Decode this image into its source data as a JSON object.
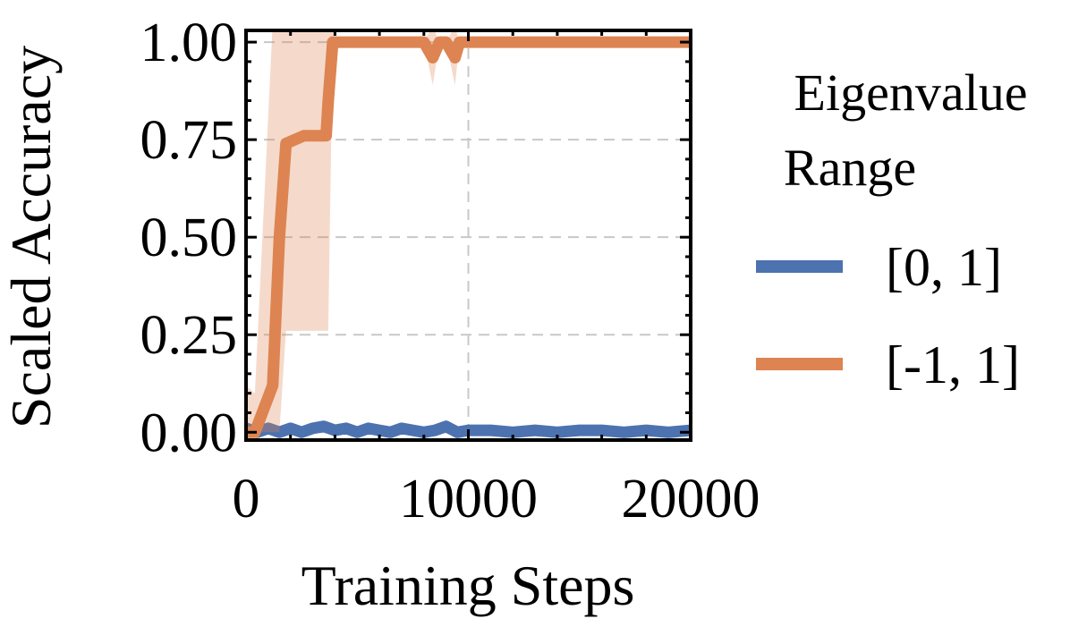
{
  "chart_data": {
    "type": "line",
    "xlabel": "Training Steps",
    "ylabel": "Scaled Accuracy",
    "xlim": [
      0,
      20000
    ],
    "ylim": [
      -0.02,
      1.03
    ],
    "xticks": [
      0,
      10000,
      20000
    ],
    "xtick_labels": [
      "0",
      "10000",
      "20000"
    ],
    "yticks": [
      0.0,
      0.25,
      0.5,
      0.75,
      1.0
    ],
    "ytick_labels": [
      "0.00",
      "0.25",
      "0.50",
      "0.75",
      "1.00"
    ],
    "grid": true,
    "legend": {
      "title": [
        "Eigenvalue",
        "Range"
      ],
      "placement": "right"
    },
    "series": [
      {
        "name": "[0, 1]",
        "color": "#4c72b0",
        "x": [
          0,
          500,
          1000,
          1500,
          2000,
          2500,
          3000,
          3500,
          4000,
          4500,
          5000,
          5500,
          6000,
          6500,
          7000,
          7500,
          8000,
          8500,
          9000,
          9500,
          10000,
          11000,
          12000,
          13000,
          14000,
          15000,
          16000,
          17000,
          18000,
          19000,
          20000
        ],
        "y": [
          0.01,
          0.0,
          0.01,
          0.0,
          0.01,
          0.0,
          0.01,
          0.015,
          0.005,
          0.01,
          0.0,
          0.01,
          0.005,
          0.0,
          0.01,
          0.005,
          0.0,
          0.005,
          0.015,
          0.0,
          0.005,
          0.005,
          0.0,
          0.005,
          0.0,
          0.005,
          0.005,
          0.0,
          0.005,
          0.0,
          0.005
        ],
        "y_low": [
          0.0,
          -0.01,
          0.0,
          -0.01,
          0.0,
          -0.01,
          0.0,
          0.0,
          -0.01,
          0.0,
          -0.01,
          0.0,
          -0.01,
          -0.01,
          0.0,
          -0.01,
          -0.01,
          -0.01,
          0.0,
          -0.01,
          -0.01,
          -0.01,
          -0.01,
          -0.01,
          -0.01,
          -0.01,
          -0.01,
          -0.01,
          -0.01,
          -0.01,
          -0.01
        ],
        "y_high": [
          0.025,
          0.01,
          0.02,
          0.01,
          0.02,
          0.01,
          0.02,
          0.03,
          0.02,
          0.02,
          0.01,
          0.025,
          0.015,
          0.01,
          0.025,
          0.015,
          0.01,
          0.015,
          0.03,
          0.01,
          0.015,
          0.015,
          0.01,
          0.015,
          0.01,
          0.015,
          0.015,
          0.01,
          0.015,
          0.01,
          0.015
        ]
      },
      {
        "name": "[-1, 1]",
        "color": "#dd8452",
        "x": [
          0,
          400,
          1200,
          1500,
          1800,
          2200,
          2600,
          3600,
          3700,
          3900,
          4000,
          8000,
          8400,
          8700,
          9000,
          9400,
          9600,
          10000,
          13000,
          20000
        ],
        "y": [
          0.0,
          0.0,
          0.12,
          0.5,
          0.74,
          0.75,
          0.76,
          0.76,
          0.85,
          1.0,
          1.0,
          1.0,
          0.96,
          1.0,
          1.0,
          0.96,
          1.0,
          1.0,
          1.0,
          1.0
        ],
        "y_low": [
          0.0,
          0.0,
          0.0,
          0.0,
          0.26,
          0.26,
          0.26,
          0.26,
          0.26,
          1.0,
          1.0,
          1.0,
          0.89,
          1.0,
          1.0,
          0.89,
          1.0,
          1.0,
          1.0,
          1.0
        ],
        "y_high": [
          0.12,
          0.1,
          1.05,
          1.05,
          1.05,
          1.05,
          1.05,
          1.05,
          1.05,
          1.05,
          1.0,
          1.0,
          1.04,
          1.0,
          1.0,
          1.04,
          1.0,
          1.0,
          1.0,
          1.0
        ]
      }
    ]
  }
}
